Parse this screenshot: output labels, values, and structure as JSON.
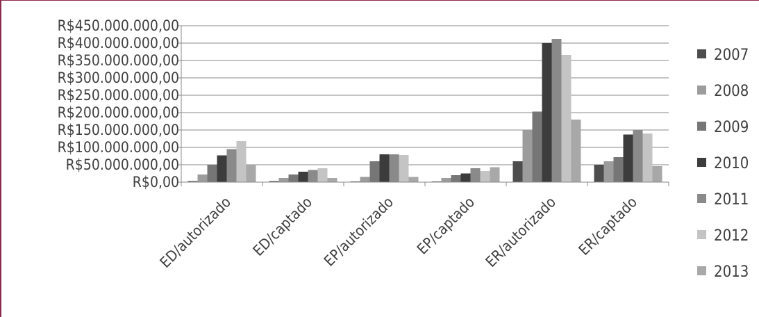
{
  "chart_data": {
    "type": "bar",
    "title": "",
    "xlabel": "",
    "ylabel": "",
    "ylim": [
      0,
      450000000
    ],
    "y_ticks": [
      0,
      50000000,
      100000000,
      150000000,
      200000000,
      250000000,
      300000000,
      350000000,
      400000000,
      450000000
    ],
    "y_tick_labels": [
      "R$0,00",
      "R$50.000.000,00",
      "R$100.000.000,00",
      "R$150.000.000,00",
      "R$200.000.000,00",
      "R$250.000.000,00",
      "R$300.000.000,00",
      "R$350.000.000,00",
      "R$400.000.000,00",
      "R$450.000.000,00"
    ],
    "grid": true,
    "legend_position": "right",
    "categories": [
      "ED/autorizado",
      "ED/captado",
      "EP/autorizado",
      "EP/captado",
      "ER/autorizado",
      "ER/captado"
    ],
    "series": [
      {
        "name": "2007",
        "color": "#4d4d4d",
        "values": [
          3000000,
          3000000,
          2000000,
          2000000,
          60000000,
          50000000
        ]
      },
      {
        "name": "2008",
        "color": "#9c9c9c",
        "values": [
          22000000,
          12000000,
          15000000,
          12000000,
          150000000,
          60000000
        ]
      },
      {
        "name": "2009",
        "color": "#767676",
        "values": [
          50000000,
          22000000,
          60000000,
          20000000,
          203000000,
          72000000
        ]
      },
      {
        "name": "2010",
        "color": "#3c3c3c",
        "values": [
          77000000,
          30000000,
          80000000,
          25000000,
          400000000,
          137000000
        ]
      },
      {
        "name": "2011",
        "color": "#8a8a8a",
        "values": [
          95000000,
          35000000,
          80000000,
          40000000,
          412000000,
          150000000
        ]
      },
      {
        "name": "2012",
        "color": "#c4c4c4",
        "values": [
          118000000,
          40000000,
          78000000,
          32000000,
          366000000,
          140000000
        ]
      },
      {
        "name": "2013",
        "color": "#a8a8a8",
        "values": [
          50000000,
          12000000,
          15000000,
          43000000,
          180000000,
          46000000
        ]
      }
    ]
  }
}
